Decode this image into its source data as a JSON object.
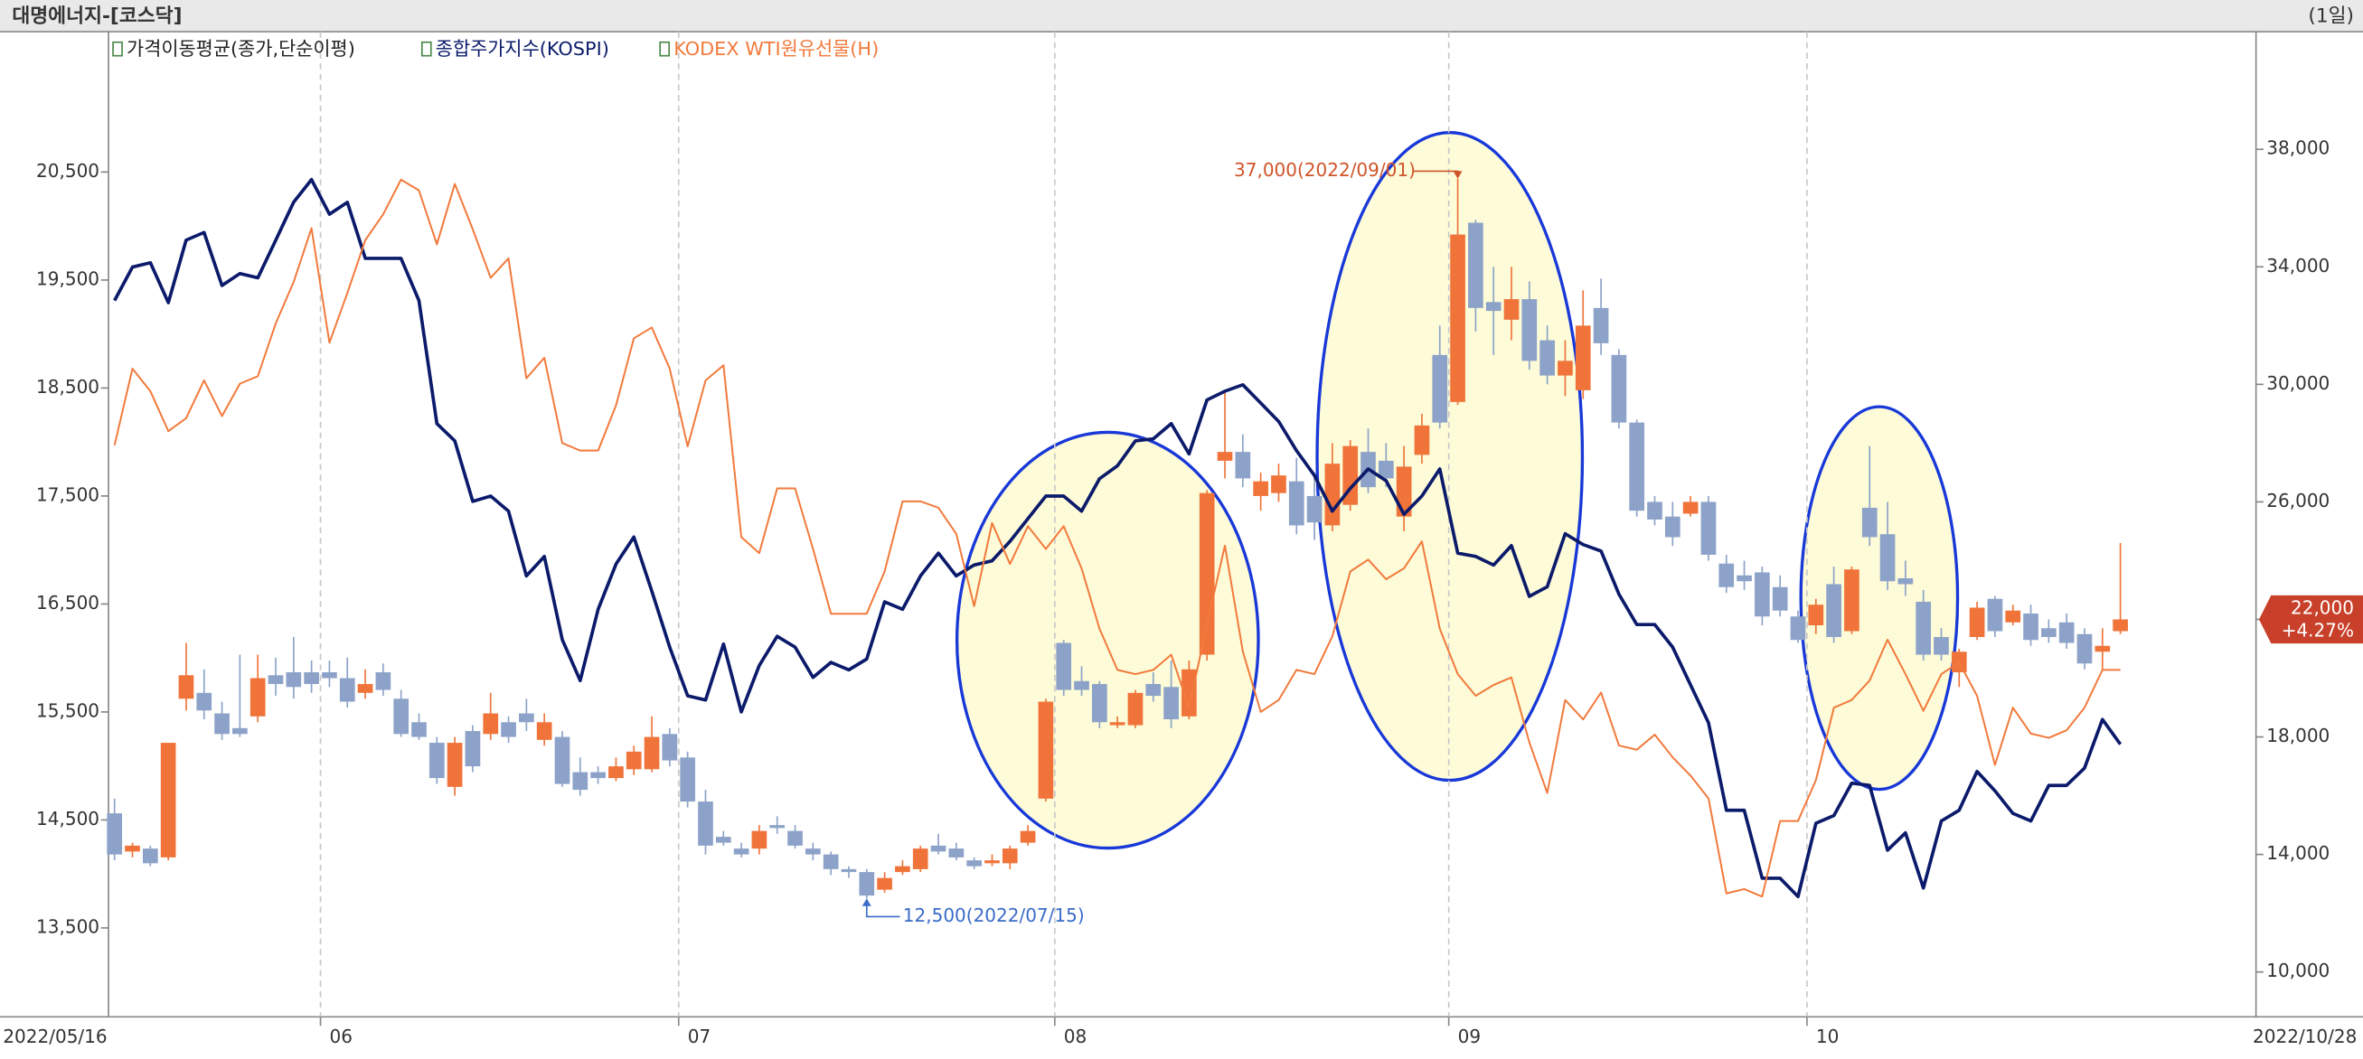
{
  "chart_data": {
    "type": "candlestick",
    "title": "대명에너지-[코스닥]",
    "period": "(1일)",
    "categories": [
      "2022/05/16",
      null,
      null,
      null,
      null,
      null,
      null,
      null,
      null,
      null,
      null,
      null,
      "06",
      null,
      null,
      null,
      null,
      null,
      null,
      null,
      null,
      null,
      null,
      null,
      null,
      null,
      null,
      null,
      null,
      null,
      null,
      null,
      "07",
      null,
      null,
      null,
      null,
      null,
      null,
      null,
      null,
      null,
      null,
      null,
      null,
      null,
      null,
      null,
      null,
      null,
      null,
      null,
      null,
      "08",
      null,
      null,
      null,
      null,
      null,
      null,
      null,
      null,
      null,
      null,
      null,
      null,
      null,
      null,
      null,
      null,
      null,
      null,
      null,
      null,
      null,
      "09",
      null,
      null,
      null,
      null,
      null,
      null,
      null,
      null,
      null,
      null,
      null,
      null,
      null,
      null,
      null,
      null,
      null,
      null,
      null,
      "10",
      null,
      null,
      null,
      null,
      null,
      null,
      null,
      null,
      null,
      null,
      null,
      null,
      null,
      null,
      null,
      null,
      "2022/10/28"
    ],
    "series": [
      {
        "name": "가격이동평균(종가,단순이평)",
        "type": "candlestick",
        "axis": "y2",
        "legend_color": "#222222",
        "up_color": "#f0743a",
        "down_color": "#8ca2c8",
        "open": [
          15400,
          14100,
          14200,
          13900,
          19300,
          19500,
          18800,
          18300,
          18700,
          20100,
          20200,
          20200,
          20200,
          20000,
          19500,
          20200,
          19300,
          18500,
          17800,
          16300,
          18200,
          18100,
          18500,
          18800,
          17900,
          18000,
          16800,
          16800,
          16600,
          16900,
          16900,
          18100,
          17300,
          15800,
          14600,
          14200,
          14200,
          15000,
          14800,
          14200,
          14000,
          13500,
          13400,
          12800,
          13400,
          13500,
          14300,
          14200,
          13800,
          13700,
          13700,
          14400,
          15900,
          21200,
          19900,
          19800,
          18400,
          18400,
          19800,
          19700,
          18700,
          20800,
          27400,
          27700,
          26200,
          26300,
          26700,
          26200,
          25200,
          25900,
          27700,
          27400,
          25500,
          27600,
          31000,
          29400,
          35500,
          32800,
          32200,
          32900,
          31500,
          30300,
          29800,
          32600,
          31000,
          28700,
          26000,
          25500,
          25600,
          26000,
          23900,
          23500,
          23600,
          23100,
          22100,
          21800,
          23200,
          21600,
          25800,
          24900,
          23400,
          22600,
          21400,
          20200,
          21400,
          22700,
          21900,
          22200,
          21700,
          21900,
          21500,
          20900,
          21600
        ],
        "high": [
          15900,
          14400,
          14300,
          17800,
          21200,
          20300,
          19200,
          20800,
          20800,
          20700,
          21400,
          20600,
          20600,
          20700,
          20300,
          20500,
          19600,
          18800,
          18000,
          18000,
          18400,
          19500,
          18700,
          19300,
          18800,
          18200,
          17300,
          17000,
          17300,
          17700,
          18700,
          18300,
          17500,
          16200,
          14800,
          14400,
          15000,
          15300,
          15000,
          14400,
          14100,
          13600,
          13500,
          13400,
          13800,
          14300,
          14700,
          14400,
          13900,
          14000,
          14300,
          15000,
          19300,
          21300,
          20400,
          19900,
          18700,
          19600,
          20200,
          20600,
          20600,
          26400,
          29800,
          28300,
          27000,
          27300,
          27500,
          27000,
          28000,
          28100,
          28500,
          28000,
          27900,
          29000,
          32000,
          37000,
          35600,
          34000,
          34000,
          33500,
          32000,
          31500,
          33200,
          33600,
          31200,
          28800,
          26200,
          26000,
          26200,
          26200,
          24200,
          24000,
          23800,
          23500,
          22300,
          22700,
          23800,
          23800,
          27900,
          26000,
          24000,
          23000,
          21700,
          21000,
          22600,
          22800,
          22500,
          22500,
          22000,
          22200,
          21700,
          21700,
          24600
        ],
        "low": [
          13800,
          13900,
          13600,
          13800,
          18900,
          18600,
          17900,
          18000,
          18500,
          19400,
          19300,
          19500,
          19700,
          19000,
          19300,
          19400,
          18000,
          17900,
          16400,
          16000,
          16800,
          17900,
          17800,
          18200,
          17700,
          16300,
          16000,
          16400,
          16500,
          16700,
          16800,
          17000,
          15600,
          14000,
          14300,
          13900,
          14000,
          14700,
          14200,
          13800,
          13300,
          13200,
          12500,
          12700,
          13300,
          13400,
          14000,
          13800,
          13500,
          13600,
          13500,
          14300,
          15800,
          19400,
          19400,
          18300,
          18300,
          18300,
          19200,
          18300,
          18600,
          20600,
          26800,
          26500,
          25700,
          26000,
          24900,
          24700,
          25000,
          25700,
          26300,
          26500,
          25000,
          27300,
          28500,
          29300,
          31800,
          31000,
          31500,
          30500,
          30000,
          29600,
          29500,
          31000,
          28500,
          25500,
          25200,
          24500,
          25500,
          24000,
          22900,
          23000,
          21800,
          22100,
          21200,
          21500,
          21200,
          21500,
          24500,
          23000,
          22800,
          20600,
          20600,
          19700,
          21300,
          21400,
          21800,
          21100,
          21200,
          21000,
          20300,
          20300,
          21500
        ],
        "close": [
          14000,
          14300,
          13700,
          17800,
          20100,
          18900,
          18100,
          18100,
          20000,
          19800,
          19700,
          19800,
          20000,
          19200,
          19800,
          19600,
          18100,
          18000,
          16600,
          17800,
          17000,
          18800,
          18000,
          18500,
          18500,
          16400,
          16200,
          16600,
          17000,
          17500,
          18000,
          17200,
          15800,
          14300,
          14400,
          14000,
          14800,
          14900,
          14300,
          14000,
          13500,
          13400,
          12600,
          13200,
          13600,
          14200,
          14100,
          13900,
          13600,
          13800,
          14200,
          14800,
          19200,
          19600,
          19600,
          18500,
          18500,
          19500,
          19400,
          18600,
          20300,
          26300,
          27700,
          26800,
          26700,
          26900,
          25200,
          25300,
          27300,
          27900,
          26500,
          26800,
          27200,
          28600,
          28700,
          35100,
          32600,
          32500,
          32900,
          30800,
          30300,
          30800,
          32000,
          31400,
          28700,
          25700,
          25400,
          24800,
          26000,
          24200,
          23100,
          23300,
          22100,
          22300,
          21300,
          22500,
          21400,
          23700,
          24800,
          23300,
          23200,
          20800,
          20800,
          20900,
          22400,
          21600,
          22300,
          21300,
          21400,
          21200,
          20500,
          21100,
          22000
        ]
      },
      {
        "name": "종합주가지수(KOSPI)",
        "type": "line",
        "color": "#0b1a6a",
        "values": [
          19310,
          19620,
          19660,
          19290,
          19870,
          19940,
          19450,
          19560,
          19520,
          19870,
          20220,
          20430,
          20110,
          20220,
          19700,
          19700,
          19700,
          19310,
          18170,
          18010,
          17450,
          17500,
          17360,
          16760,
          16940,
          16170,
          15790,
          16450,
          16870,
          17120,
          16620,
          16100,
          15650,
          15610,
          16130,
          15500,
          15930,
          16200,
          16100,
          15820,
          15960,
          15890,
          15990,
          16520,
          16450,
          16760,
          16970,
          16760,
          16860,
          16900,
          17080,
          17290,
          17500,
          17500,
          17360,
          17660,
          17780,
          18010,
          18030,
          18170,
          17890,
          18390,
          18470,
          18530,
          18360,
          18190,
          17920,
          17690,
          17360,
          17570,
          17750,
          17640,
          17330,
          17500,
          17750,
          16970,
          16940,
          16860,
          17040,
          16570,
          16660,
          17150,
          17050,
          16990,
          16590,
          16310,
          16310,
          16100,
          15750,
          15400,
          14590,
          14590,
          13960,
          13960,
          13790,
          14470,
          14540,
          14840,
          14820,
          14220,
          14380,
          13870,
          14490,
          14590,
          14950,
          14770,
          14560,
          14490,
          14820,
          14820,
          14980,
          15430,
          15200
        ]
      },
      {
        "name": "KODEX WTI원유선물(H)",
        "type": "line",
        "color": "#f27a3c",
        "values": [
          17970,
          18680,
          18470,
          18100,
          18220,
          18570,
          18240,
          18540,
          18610,
          19100,
          19480,
          19980,
          18920,
          19380,
          19870,
          20110,
          20430,
          20330,
          19830,
          20390,
          19970,
          19520,
          19700,
          18590,
          18780,
          17990,
          17920,
          17920,
          18340,
          18960,
          19060,
          18680,
          17960,
          18570,
          18710,
          17120,
          16970,
          17570,
          17570,
          17010,
          16410,
          16410,
          16410,
          16800,
          17450,
          17450,
          17390,
          17150,
          16480,
          17250,
          16870,
          17220,
          17010,
          17220,
          16830,
          16270,
          15890,
          15850,
          15890,
          16030,
          15540,
          16310,
          17040,
          16060,
          15500,
          15610,
          15890,
          15850,
          16200,
          16800,
          16910,
          16730,
          16830,
          17080,
          16270,
          15850,
          15650,
          15750,
          15820,
          15220,
          14750,
          15610,
          15430,
          15680,
          15190,
          15150,
          15290,
          15080,
          14910,
          14700,
          13820,
          13860,
          13790,
          14490,
          14490,
          14870,
          15540,
          15610,
          15790,
          16170,
          15850,
          15510,
          15850,
          15960,
          15650,
          15010,
          15540,
          15300,
          15260,
          15330,
          15540,
          15890,
          15890
        ]
      }
    ],
    "ylim": [
      12677,
      21800
    ],
    "yticks": [
      {
        "value": 13500,
        "label": "13,500"
      },
      {
        "value": 14500,
        "label": "14,500"
      },
      {
        "value": 15500,
        "label": "15,500"
      },
      {
        "value": 16500,
        "label": "16,500"
      },
      {
        "value": 17500,
        "label": "17,500"
      },
      {
        "value": 18500,
        "label": "18,500"
      },
      {
        "value": 19500,
        "label": "19,500"
      },
      {
        "value": 20500,
        "label": "20,500"
      }
    ],
    "y2lim": [
      8474,
      42005
    ],
    "y2ticks": [
      {
        "value": 10000,
        "label": "10,000"
      },
      {
        "value": 14000,
        "label": "14,000"
      },
      {
        "value": 18000,
        "label": "18,000"
      },
      {
        "value": 22000,
        "label": "22,000"
      },
      {
        "value": 26000,
        "label": "26,000"
      },
      {
        "value": 30000,
        "label": "30,000"
      },
      {
        "value": 34000,
        "label": "34,000"
      },
      {
        "value": 38000,
        "label": "38,000"
      }
    ],
    "xgrid": true,
    "annotations": [
      {
        "value": 37000,
        "label": "37,000(2022/09/01)",
        "color": "#d0542a"
      },
      {
        "value": 12500,
        "label": "12,500(2022/07/15)",
        "color": "#3a6cc8"
      }
    ],
    "last_price": {
      "value": 22000,
      "label": "22,000",
      "change": "+4.27%",
      "color": "#c8402a"
    }
  }
}
